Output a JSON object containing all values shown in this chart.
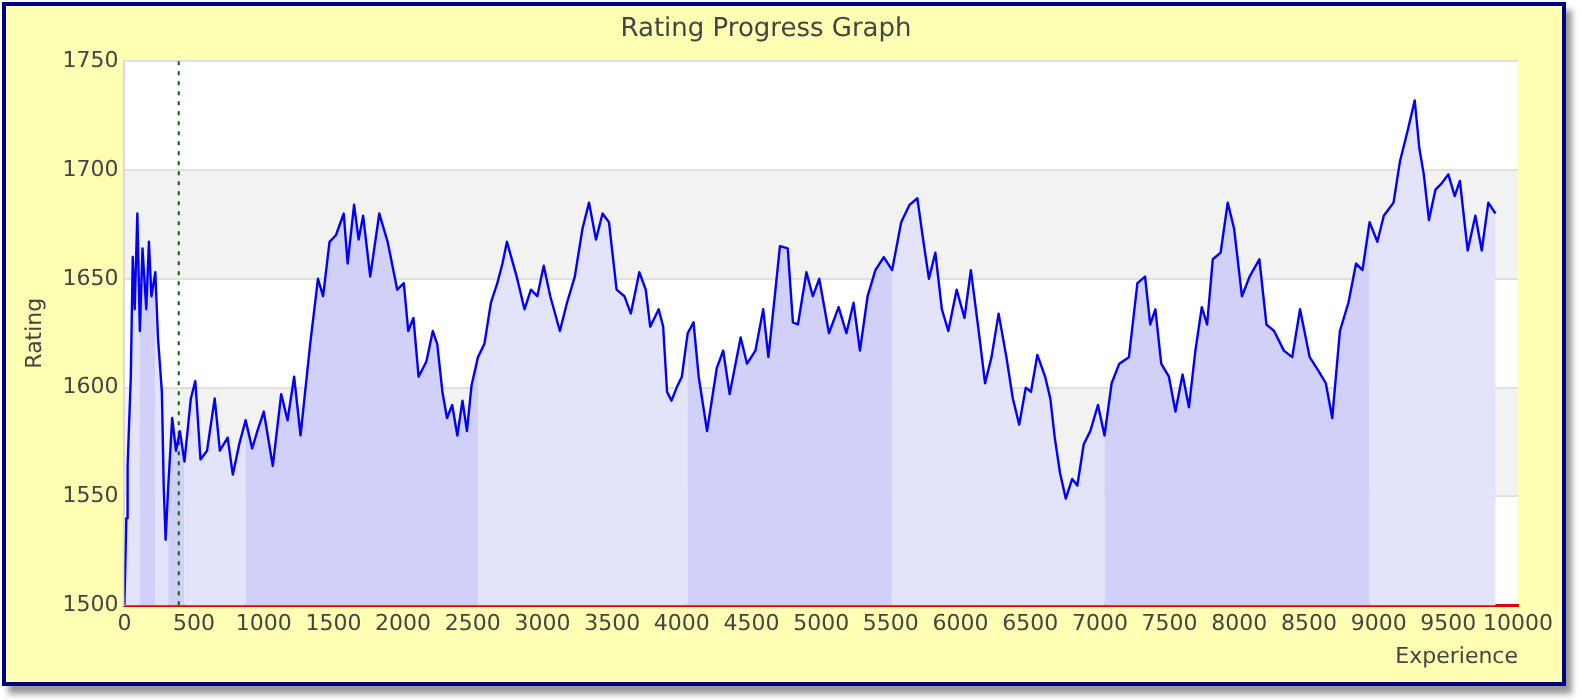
{
  "chart_data": {
    "type": "area",
    "title": "Rating Progress Graph",
    "xlabel": "Experience",
    "ylabel": "Rating",
    "x": [
      0,
      14,
      23,
      46,
      60,
      74,
      93,
      111,
      130,
      157,
      176,
      194,
      222,
      241,
      269,
      282,
      296,
      315,
      343,
      370,
      398,
      431,
      477,
      509,
      546,
      593,
      648,
      685,
      741,
      778,
      824,
      870,
      917,
      954,
      1000,
      1065,
      1125,
      1171,
      1218,
      1264,
      1333,
      1389,
      1426,
      1472,
      1518,
      1574,
      1602,
      1648,
      1681,
      1713,
      1764,
      1829,
      1889,
      1958,
      2005,
      2037,
      2074,
      2111,
      2167,
      2213,
      2245,
      2282,
      2315,
      2352,
      2389,
      2426,
      2458,
      2491,
      2537,
      2583,
      2630,
      2676,
      2713,
      2745,
      2815,
      2871,
      2917,
      2963,
      3009,
      3056,
      3125,
      3176,
      3232,
      3287,
      3334,
      3384,
      3431,
      3477,
      3532,
      3588,
      3634,
      3695,
      3741,
      3773,
      3834,
      3866,
      3894,
      3926,
      3963,
      4000,
      4042,
      4084,
      4121,
      4181,
      4251,
      4297,
      4343,
      4422,
      4468,
      4528,
      4584,
      4621,
      4667,
      4704,
      4760,
      4797,
      4833,
      4894,
      4940,
      4986,
      5056,
      5125,
      5181,
      5232,
      5278,
      5333,
      5389,
      5449,
      5509,
      5574,
      5634,
      5690,
      5727,
      5773,
      5819,
      5866,
      5912,
      5972,
      6028,
      6074,
      6130,
      6176,
      6222,
      6273,
      6329,
      6375,
      6421,
      6468,
      6505,
      6551,
      6607,
      6644,
      6676,
      6713,
      6755,
      6801,
      6838,
      6884,
      6931,
      6986,
      7033,
      7084,
      7139,
      7208,
      7269,
      7324,
      7361,
      7398,
      7440,
      7495,
      7542,
      7593,
      7639,
      7685,
      7731,
      7769,
      7810,
      7866,
      7917,
      7963,
      8019,
      8074,
      8144,
      8195,
      8250,
      8320,
      8380,
      8436,
      8505,
      8565,
      8621,
      8667,
      8722,
      8783,
      8838,
      8884,
      8935,
      8991,
      9037,
      9107,
      9153,
      9208,
      9259,
      9292,
      9324,
      9361,
      9408,
      9454,
      9500,
      9546,
      9583,
      9639,
      9694,
      9740,
      9787,
      9838
    ],
    "series": [
      {
        "color": "#e3e3fa",
        "x": [
          0,
          14,
          23,
          46,
          60,
          74,
          93,
          111
        ],
        "values": [
          1500,
          1540,
          1564,
          1605,
          1660,
          1636,
          1680,
          1626
        ]
      },
      {
        "color": "#d0d0f8",
        "x": [
          111,
          130,
          157,
          176,
          194,
          222
        ],
        "values": [
          1626,
          1664,
          1636,
          1667,
          1642,
          1653
        ]
      },
      {
        "color": "#e3e3fa",
        "x": [
          222,
          241,
          269,
          282,
          296,
          315
        ],
        "values": [
          1653,
          1623,
          1598,
          1555,
          1530,
          1555
        ]
      },
      {
        "color": "#d0d0f8",
        "x": [
          315,
          343,
          370,
          398,
          431
        ],
        "values": [
          1555,
          1586,
          1571,
          1580,
          1566
        ]
      },
      {
        "color": "#e3e3fa",
        "x": [
          431,
          477,
          509,
          546,
          593,
          648,
          685,
          741,
          778,
          824,
          870
        ],
        "values": [
          1566,
          1595,
          1603,
          1567,
          1571,
          1595,
          1571,
          1577,
          1560,
          1574,
          1585
        ]
      },
      {
        "color": "#d0d0f8",
        "x": [
          870,
          917,
          954,
          1000,
          1065,
          1125,
          1171,
          1218,
          1264,
          1333,
          1389,
          1426,
          1472,
          1518,
          1574,
          1602,
          1648,
          1681,
          1713,
          1764,
          1829,
          1889,
          1958,
          2005,
          2037,
          2074,
          2111,
          2167,
          2213,
          2245,
          2282,
          2315,
          2352,
          2389,
          2426,
          2458,
          2491,
          2537
        ],
        "values": [
          1585,
          1572,
          1580,
          1589,
          1564,
          1597,
          1585,
          1605,
          1578,
          1620,
          1650,
          1642,
          1667,
          1670,
          1680,
          1657,
          1684,
          1668,
          1679,
          1651,
          1680,
          1667,
          1645,
          1648,
          1626,
          1632,
          1605,
          1612,
          1626,
          1620,
          1598,
          1586,
          1592,
          1578,
          1594,
          1580,
          1601,
          1614
        ]
      },
      {
        "color": "#e3e3fa",
        "x": [
          2537,
          2583,
          2630,
          2676,
          2713,
          2745,
          2815,
          2871,
          2917,
          2963,
          3009,
          3056,
          3125,
          3176,
          3232,
          3287,
          3334,
          3384,
          3431,
          3477,
          3532,
          3588,
          3634,
          3695,
          3741,
          3773,
          3834,
          3866,
          3894,
          3926,
          3963,
          4000,
          4042
        ],
        "values": [
          1614,
          1620,
          1639,
          1648,
          1657,
          1667,
          1651,
          1636,
          1645,
          1642,
          1656,
          1642,
          1626,
          1639,
          1651,
          1673,
          1685,
          1668,
          1680,
          1676,
          1645,
          1642,
          1634,
          1653,
          1645,
          1628,
          1636,
          1628,
          1598,
          1594,
          1600,
          1605,
          1625
        ]
      },
      {
        "color": "#d0d0f8",
        "x": [
          4042,
          4084,
          4121,
          4181,
          4251,
          4297,
          4343,
          4422,
          4468,
          4528,
          4584,
          4621,
          4667,
          4704,
          4760,
          4797,
          4833,
          4894,
          4940,
          4986,
          5056,
          5125,
          5181,
          5232,
          5278,
          5333,
          5389,
          5449,
          5509
        ],
        "values": [
          1625,
          1630,
          1605,
          1580,
          1609,
          1617,
          1597,
          1623,
          1611,
          1617,
          1636,
          1614,
          1642,
          1665,
          1664,
          1630,
          1629,
          1653,
          1642,
          1650,
          1625,
          1637,
          1625,
          1639,
          1617,
          1642,
          1654,
          1660,
          1654
        ]
      },
      {
        "color": "#e3e3fa",
        "x": [
          5509,
          5574,
          5634,
          5690,
          5727,
          5773,
          5819,
          5866,
          5912,
          5972,
          6028,
          6074,
          6130,
          6176,
          6222,
          6273,
          6329,
          6375,
          6421,
          6468,
          6505,
          6551,
          6607,
          6644,
          6676,
          6713,
          6755,
          6801,
          6838,
          6884,
          6931,
          6986,
          7033
        ],
        "values": [
          1654,
          1676,
          1684,
          1687,
          1670,
          1650,
          1662,
          1636,
          1626,
          1645,
          1632,
          1654,
          1626,
          1602,
          1614,
          1634,
          1614,
          1595,
          1583,
          1600,
          1598,
          1615,
          1605,
          1595,
          1577,
          1561,
          1549,
          1558,
          1555,
          1574,
          1580,
          1592,
          1578
        ]
      },
      {
        "color": "#d0d0f8",
        "x": [
          7033,
          7084,
          7139,
          7208,
          7269,
          7324,
          7361,
          7398,
          7440,
          7495,
          7542,
          7593,
          7639,
          7685,
          7731,
          7769,
          7810,
          7866,
          7917,
          7963,
          8019,
          8074,
          8144,
          8195,
          8250,
          8320,
          8380,
          8436,
          8505,
          8565,
          8621,
          8667,
          8722,
          8783,
          8838,
          8884,
          8935
        ],
        "values": [
          1578,
          1602,
          1611,
          1614,
          1648,
          1651,
          1629,
          1636,
          1611,
          1605,
          1589,
          1606,
          1591,
          1617,
          1637,
          1629,
          1659,
          1662,
          1685,
          1673,
          1642,
          1651,
          1659,
          1629,
          1626,
          1617,
          1614,
          1636,
          1614,
          1608,
          1602,
          1586,
          1626,
          1639,
          1657,
          1654,
          1676
        ]
      },
      {
        "color": "#e3e3fa",
        "x": [
          8935,
          8991,
          9037,
          9107,
          9153,
          9208,
          9259,
          9292,
          9324,
          9361,
          9408,
          9454,
          9500,
          9546,
          9583,
          9639,
          9694,
          9740,
          9787,
          9838
        ],
        "values": [
          1676,
          1667,
          1679,
          1685,
          1704,
          1718,
          1732,
          1710,
          1698,
          1677,
          1691,
          1694,
          1698,
          1688,
          1695,
          1663,
          1679,
          1663,
          1685,
          1680
        ]
      },
      {
        "type": "line",
        "color": "#0000ff",
        "values": [
          1500,
          1540,
          1564,
          1605,
          1660,
          1636,
          1680,
          1626,
          1664,
          1636,
          1667,
          1642,
          1653,
          1623,
          1598,
          1555,
          1530,
          1555,
          1586,
          1571,
          1580,
          1566,
          1595,
          1603,
          1567,
          1571,
          1595,
          1571,
          1577,
          1560,
          1574,
          1585,
          1572,
          1580,
          1589,
          1564,
          1597,
          1585,
          1605,
          1578,
          1620,
          1650,
          1642,
          1667,
          1670,
          1680,
          1657,
          1684,
          1668,
          1679,
          1651,
          1680,
          1667,
          1645,
          1648,
          1626,
          1632,
          1605,
          1612,
          1626,
          1620,
          1598,
          1586,
          1592,
          1578,
          1594,
          1580,
          1601,
          1614,
          1620,
          1639,
          1648,
          1657,
          1667,
          1651,
          1636,
          1645,
          1642,
          1656,
          1642,
          1626,
          1639,
          1651,
          1673,
          1685,
          1668,
          1680,
          1676,
          1645,
          1642,
          1634,
          1653,
          1645,
          1628,
          1636,
          1628,
          1598,
          1594,
          1600,
          1605,
          1625,
          1630,
          1605,
          1580,
          1609,
          1617,
          1597,
          1623,
          1611,
          1617,
          1636,
          1614,
          1642,
          1665,
          1664,
          1630,
          1629,
          1653,
          1642,
          1650,
          1625,
          1637,
          1625,
          1639,
          1617,
          1642,
          1654,
          1660,
          1654,
          1676,
          1684,
          1687,
          1670,
          1650,
          1662,
          1636,
          1626,
          1645,
          1632,
          1654,
          1626,
          1602,
          1614,
          1634,
          1614,
          1595,
          1583,
          1600,
          1598,
          1615,
          1605,
          1595,
          1577,
          1561,
          1549,
          1558,
          1555,
          1574,
          1580,
          1592,
          1578,
          1602,
          1611,
          1614,
          1648,
          1651,
          1629,
          1636,
          1611,
          1605,
          1589,
          1606,
          1591,
          1617,
          1637,
          1629,
          1659,
          1662,
          1685,
          1673,
          1642,
          1651,
          1659,
          1629,
          1626,
          1617,
          1614,
          1636,
          1614,
          1608,
          1602,
          1586,
          1626,
          1639,
          1657,
          1654,
          1676,
          1667,
          1679,
          1685,
          1704,
          1718,
          1732,
          1710,
          1698,
          1677,
          1691,
          1694,
          1698,
          1688,
          1695,
          1663,
          1679,
          1663,
          1685,
          1680
        ]
      }
    ],
    "xlim": [
      0,
      10000
    ],
    "xticks": [
      0,
      500,
      1000,
      1500,
      2000,
      2500,
      3000,
      3500,
      4000,
      4500,
      5000,
      5500,
      6000,
      6500,
      7000,
      7500,
      8000,
      8500,
      9000,
      9500,
      10000
    ],
    "ylim": [
      1500,
      1750
    ],
    "yticks": [
      1500,
      1550,
      1600,
      1650,
      1700,
      1750
    ],
    "grid": "y",
    "ref_lines": [
      {
        "axis": "x",
        "value": 390,
        "color": "#006400",
        "line_style": "dotted"
      }
    ],
    "bands": [
      {
        "axis": "y",
        "from": 1550,
        "to": 1600,
        "color": "#f2f2f2"
      },
      {
        "axis": "y",
        "from": 1650,
        "to": 1700,
        "color": "#f2f2f2"
      }
    ]
  }
}
